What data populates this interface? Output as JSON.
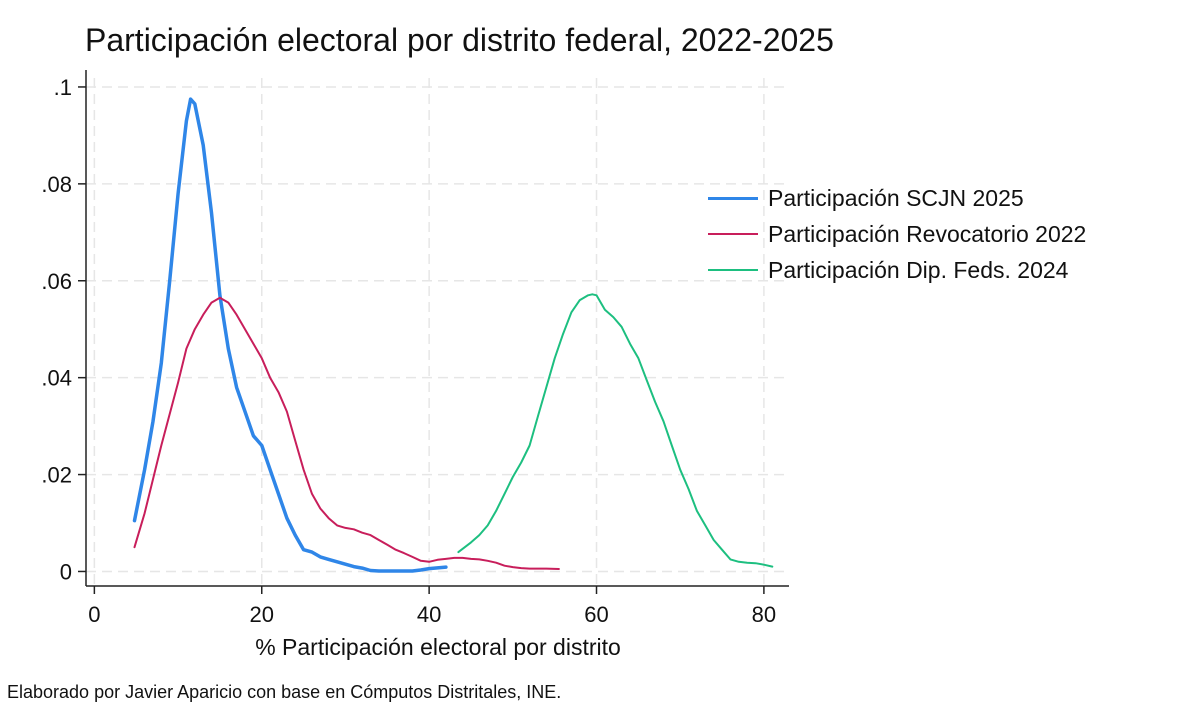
{
  "chart_data": {
    "type": "line",
    "title": "Participación electoral por distrito federal, 2022-2025",
    "xlabel": "% Participación electoral por distrito",
    "ylabel": "",
    "xlim": [
      -1,
      83
    ],
    "ylim": [
      -0.003,
      0.1035
    ],
    "x_ticks": [
      0,
      20,
      40,
      60,
      80
    ],
    "x_tick_labels": [
      "0",
      "20",
      "40",
      "60",
      "80"
    ],
    "y_ticks": [
      0,
      0.02,
      0.04,
      0.06,
      0.08,
      0.1
    ],
    "y_tick_labels": [
      "0",
      ".02",
      ".04",
      ".06",
      ".08",
      ".1"
    ],
    "grid": true,
    "legend_position": "right",
    "series": [
      {
        "name": "Participación SCJN 2025",
        "color": "#2f86e8",
        "points": [
          [
            4.8,
            0.0105
          ],
          [
            6,
            0.021
          ],
          [
            7,
            0.031
          ],
          [
            8,
            0.043
          ],
          [
            9,
            0.06
          ],
          [
            10,
            0.078
          ],
          [
            11,
            0.093
          ],
          [
            11.5,
            0.0975
          ],
          [
            12,
            0.0965
          ],
          [
            13,
            0.088
          ],
          [
            14,
            0.074
          ],
          [
            15,
            0.057
          ],
          [
            16,
            0.046
          ],
          [
            17,
            0.038
          ],
          [
            18,
            0.033
          ],
          [
            19,
            0.028
          ],
          [
            20,
            0.026
          ],
          [
            21,
            0.021
          ],
          [
            22,
            0.016
          ],
          [
            23,
            0.011
          ],
          [
            24,
            0.0075
          ],
          [
            25,
            0.0045
          ],
          [
            26,
            0.004
          ],
          [
            27,
            0.003
          ],
          [
            28,
            0.0025
          ],
          [
            29,
            0.002
          ],
          [
            30,
            0.0015
          ],
          [
            31,
            0.001
          ],
          [
            32,
            0.0007
          ],
          [
            33,
            0.0002
          ],
          [
            34,
            0.0001
          ],
          [
            36,
            0.0001
          ],
          [
            38,
            0.0001
          ],
          [
            39,
            0.0003
          ],
          [
            40,
            0.0006
          ],
          [
            42,
            0.0009
          ]
        ]
      },
      {
        "name": "Participación Revocatorio 2022",
        "color": "#c81e5b",
        "points": [
          [
            4.8,
            0.005
          ],
          [
            6,
            0.012
          ],
          [
            8,
            0.026
          ],
          [
            10,
            0.039
          ],
          [
            11,
            0.046
          ],
          [
            12,
            0.05
          ],
          [
            13,
            0.053
          ],
          [
            14,
            0.0555
          ],
          [
            15,
            0.0565
          ],
          [
            16,
            0.0555
          ],
          [
            17,
            0.053
          ],
          [
            18,
            0.05
          ],
          [
            19,
            0.047
          ],
          [
            20,
            0.044
          ],
          [
            21,
            0.04
          ],
          [
            22,
            0.037
          ],
          [
            23,
            0.033
          ],
          [
            24,
            0.027
          ],
          [
            25,
            0.021
          ],
          [
            26,
            0.016
          ],
          [
            27,
            0.013
          ],
          [
            28,
            0.011
          ],
          [
            29,
            0.0095
          ],
          [
            30,
            0.009
          ],
          [
            31,
            0.0087
          ],
          [
            32,
            0.008
          ],
          [
            33,
            0.0075
          ],
          [
            34,
            0.0065
          ],
          [
            35,
            0.0055
          ],
          [
            36,
            0.0045
          ],
          [
            37,
            0.0038
          ],
          [
            38,
            0.003
          ],
          [
            39,
            0.0022
          ],
          [
            40,
            0.002
          ],
          [
            41,
            0.0024
          ],
          [
            42,
            0.0026
          ],
          [
            43,
            0.0028
          ],
          [
            44,
            0.0028
          ],
          [
            45,
            0.0026
          ],
          [
            46,
            0.0025
          ],
          [
            47,
            0.0022
          ],
          [
            48,
            0.0018
          ],
          [
            49,
            0.0012
          ],
          [
            50,
            0.0009
          ],
          [
            51,
            0.0007
          ],
          [
            52,
            0.0006
          ],
          [
            53,
            0.0006
          ],
          [
            54,
            0.0006
          ],
          [
            55.5,
            0.0005
          ]
        ]
      },
      {
        "name": "Participación Dip. Feds. 2024",
        "color": "#1dbf80",
        "points": [
          [
            43.5,
            0.004
          ],
          [
            45,
            0.006
          ],
          [
            46,
            0.0075
          ],
          [
            47,
            0.0095
          ],
          [
            48,
            0.0125
          ],
          [
            49,
            0.016
          ],
          [
            50,
            0.0195
          ],
          [
            51,
            0.0225
          ],
          [
            52,
            0.026
          ],
          [
            53,
            0.032
          ],
          [
            54,
            0.038
          ],
          [
            55,
            0.044
          ],
          [
            56,
            0.049
          ],
          [
            57,
            0.0535
          ],
          [
            58,
            0.056
          ],
          [
            59,
            0.057
          ],
          [
            59.5,
            0.0572
          ],
          [
            60,
            0.057
          ],
          [
            61,
            0.054
          ],
          [
            62,
            0.0525
          ],
          [
            63,
            0.0505
          ],
          [
            64,
            0.047
          ],
          [
            65,
            0.044
          ],
          [
            66,
            0.0395
          ],
          [
            67,
            0.035
          ],
          [
            68,
            0.031
          ],
          [
            69,
            0.026
          ],
          [
            70,
            0.021
          ],
          [
            71,
            0.017
          ],
          [
            72,
            0.0125
          ],
          [
            73,
            0.0095
          ],
          [
            74,
            0.0065
          ],
          [
            75,
            0.0045
          ],
          [
            76,
            0.0025
          ],
          [
            77,
            0.002
          ],
          [
            78,
            0.0018
          ],
          [
            79,
            0.0017
          ],
          [
            80,
            0.0014
          ],
          [
            81,
            0.001
          ]
        ]
      }
    ],
    "footnote": "Elaborado por Javier Aparicio con base en Cómputos Distritales, INE."
  }
}
